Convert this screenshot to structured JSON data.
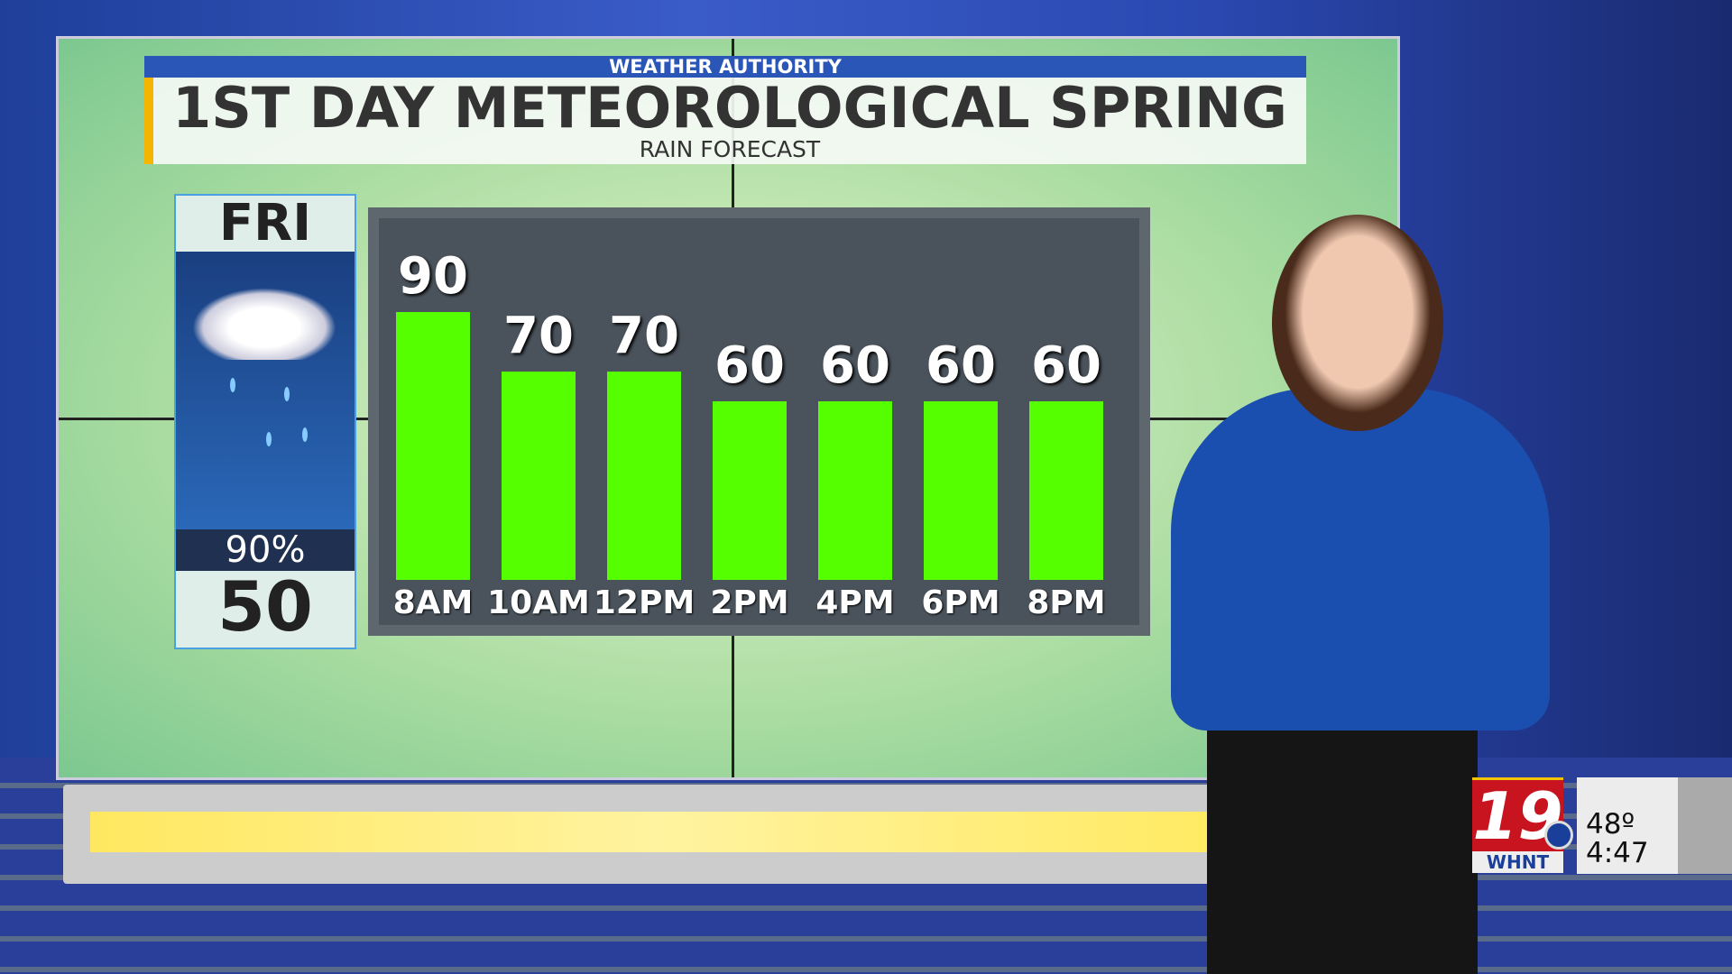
{
  "header": {
    "brand": "WEATHER AUTHORITY",
    "title": "1ST DAY METEOROLOGICAL SPRING",
    "subtitle": "RAIN FORECAST"
  },
  "day": {
    "name": "FRI",
    "icon": "rain-cloud-icon",
    "precip_chance": "90%",
    "temp": "50"
  },
  "chart_data": {
    "type": "bar",
    "categories": [
      "8AM",
      "10AM",
      "12PM",
      "2PM",
      "4PM",
      "6PM",
      "8PM"
    ],
    "values": [
      90,
      70,
      70,
      60,
      60,
      60,
      60
    ],
    "ylim": [
      0,
      100
    ],
    "bar_color": "#55ff00",
    "grid": false
  },
  "overlay": {
    "station_number": "19",
    "station_call": "WHNT",
    "network_icon": "cbs-eye-icon",
    "temperature": "48º",
    "time": "4:47",
    "accent": "#c8141e"
  }
}
